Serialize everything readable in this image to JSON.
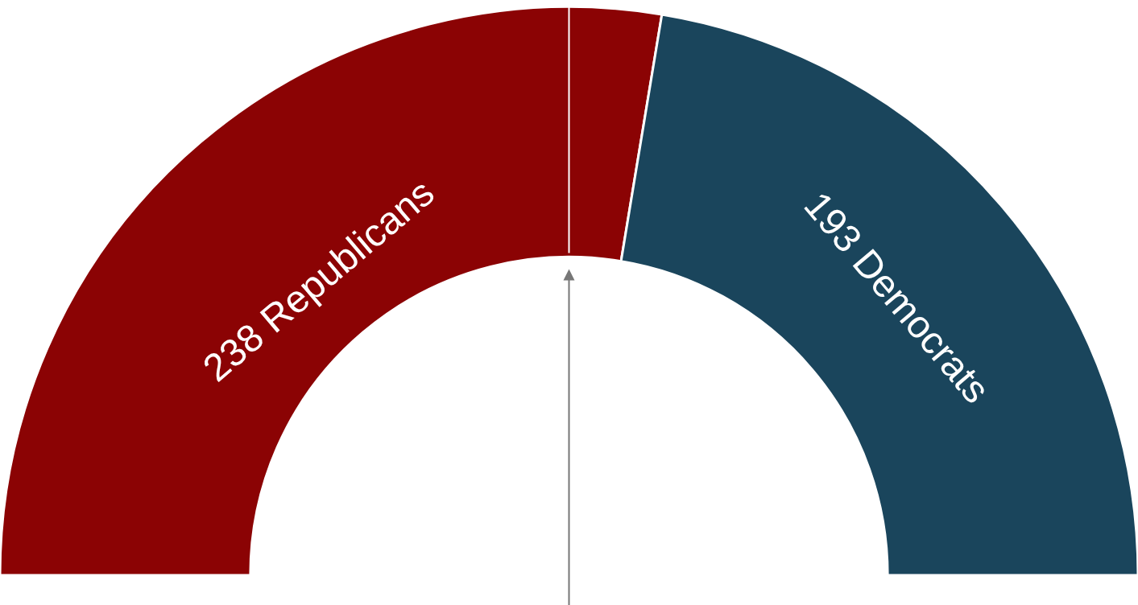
{
  "chart_data": {
    "type": "donut",
    "categories": [
      "238 Republicans",
      "193 Democrats"
    ],
    "values": [
      238,
      193
    ],
    "colors": [
      "#8b0304",
      "#1a455c"
    ],
    "needle": "238 Republicans"
  }
}
